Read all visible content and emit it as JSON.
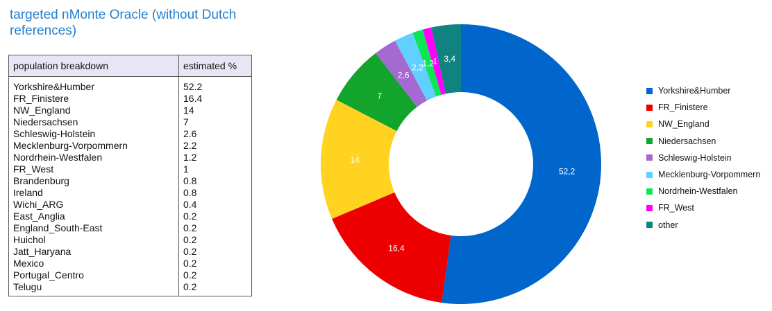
{
  "title": "targeted nMonte  Oracle (without Dutch references)",
  "table": {
    "headers": [
      "population breakdown",
      "estimated %"
    ],
    "rows": [
      [
        "Yorkshire&Humber",
        "52.2"
      ],
      [
        "FR_Finistere",
        "16.4"
      ],
      [
        "NW_England",
        "14"
      ],
      [
        "Niedersachsen",
        "7"
      ],
      [
        "Schleswig-Holstein",
        "2.6"
      ],
      [
        "Mecklenburg-Vorpommern",
        "2.2"
      ],
      [
        "Nordrhein-Westfalen",
        "1.2"
      ],
      [
        "FR_West",
        "1"
      ],
      [
        "Brandenburg",
        "0.8"
      ],
      [
        "Ireland",
        "0.8"
      ],
      [
        "Wichi_ARG",
        "0.4"
      ],
      [
        "East_Anglia",
        "0.2"
      ],
      [
        "England_South-East",
        "0.2"
      ],
      [
        "Huichol",
        "0.2"
      ],
      [
        "Jatt_Haryana",
        "0.2"
      ],
      [
        "Mexico",
        "0.2"
      ],
      [
        "Portugal_Centro",
        "0.2"
      ],
      [
        "Telugu",
        "0.2"
      ]
    ]
  },
  "chart_data": {
    "type": "pie",
    "style": "donut",
    "categories": [
      "Yorkshire&Humber",
      "FR_Finistere",
      "NW_England",
      "Niedersachsen",
      "Schleswig-Holstein",
      "Mecklenburg-Vorpommern",
      "Nordrhein-Westfalen",
      "FR_West",
      "other"
    ],
    "values": [
      52.2,
      16.4,
      14,
      7,
      2.6,
      2.2,
      1.2,
      1,
      3.4
    ],
    "data_labels": [
      "52,2",
      "16,4",
      "14",
      "7",
      "2,6",
      "2,2",
      "1,2",
      "1",
      "3,4"
    ],
    "colors": [
      "#0066cc",
      "#ee0000",
      "#ffd320",
      "#12a42c",
      "#a569d2",
      "#61d0ff",
      "#0ce556",
      "#ff00ff",
      "#108380"
    ],
    "legend_position": "right"
  }
}
